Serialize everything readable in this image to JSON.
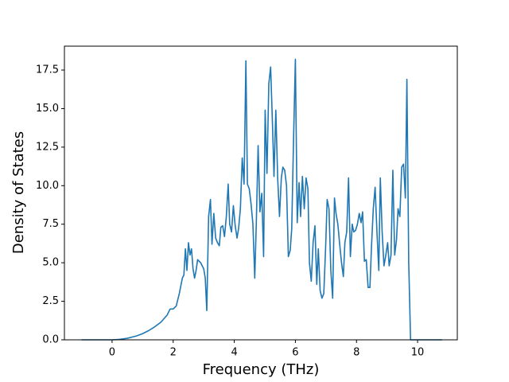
{
  "chart_data": {
    "type": "line",
    "xlabel": "Frequency (THz)",
    "ylabel": "Density of States",
    "color": "#1f77b4",
    "xlim": [
      -1.56,
      11.3
    ],
    "ylim": [
      0,
      19.05
    ],
    "xticks": [
      0,
      2,
      4,
      6,
      8,
      10
    ],
    "yticks": [
      {
        "value": 0,
        "label": "0.0"
      },
      2.5,
      {
        "value": 5,
        "label": "5.0"
      },
      7.5,
      {
        "value": 10,
        "label": "10.0"
      },
      12.5,
      {
        "value": 15,
        "label": "15.0"
      },
      17.5
    ],
    "x": [
      -1,
      0,
      0.2,
      0.5,
      0.8,
      1.0,
      1.2,
      1.4,
      1.6,
      1.8,
      1.9,
      2.0,
      2.1,
      2.2,
      2.3,
      2.35,
      2.4,
      2.45,
      2.5,
      2.55,
      2.6,
      2.65,
      2.7,
      2.75,
      2.8,
      2.9,
      3.0,
      3.05,
      3.1,
      3.16,
      3.22,
      3.27,
      3.33,
      3.39,
      3.45,
      3.51,
      3.56,
      3.62,
      3.68,
      3.74,
      3.8,
      3.85,
      3.91,
      3.97,
      4.03,
      4.09,
      4.14,
      4.2,
      4.26,
      4.32,
      4.38,
      4.43,
      4.49,
      4.55,
      4.61,
      4.67,
      4.72,
      4.78,
      4.84,
      4.9,
      4.96,
      5.01,
      5.07,
      5.13,
      5.19,
      5.25,
      5.3,
      5.36,
      5.42,
      5.48,
      5.54,
      5.59,
      5.65,
      5.71,
      5.77,
      5.83,
      5.88,
      5.94,
      6.0,
      6.06,
      6.12,
      6.17,
      6.23,
      6.29,
      6.35,
      6.41,
      6.46,
      6.52,
      6.58,
      6.64,
      6.7,
      6.75,
      6.81,
      6.87,
      6.93,
      6.99,
      7.04,
      7.1,
      7.16,
      7.22,
      7.28,
      7.33,
      7.39,
      7.45,
      7.51,
      7.57,
      7.62,
      7.68,
      7.74,
      7.8,
      7.86,
      7.91,
      7.97,
      8.03,
      8.09,
      8.15,
      8.2,
      8.26,
      8.32,
      8.38,
      8.44,
      8.49,
      8.55,
      8.61,
      8.67,
      8.73,
      8.78,
      8.84,
      8.9,
      8.96,
      9.02,
      9.07,
      9.13,
      9.19,
      9.25,
      9.31,
      9.36,
      9.42,
      9.48,
      9.54,
      9.6,
      9.65,
      9.71,
      9.77,
      10.8
    ],
    "values": [
      0,
      0,
      0.02,
      0.1,
      0.25,
      0.4,
      0.6,
      0.85,
      1.15,
      1.6,
      2.0,
      2.0,
      2.2,
      3.0,
      4.0,
      4.2,
      5.9,
      4.5,
      6.3,
      5.5,
      5.9,
      4.6,
      4.0,
      4.5,
      5.2,
      5.0,
      4.6,
      4.0,
      1.9,
      8.0,
      9.1,
      6.2,
      8.2,
      6.6,
      6.3,
      6.1,
      7.3,
      7.4,
      6.7,
      8.0,
      10.1,
      7.5,
      7.0,
      8.7,
      7.4,
      6.6,
      7.2,
      8.5,
      11.8,
      10.1,
      18.1,
      10.1,
      9.8,
      8.8,
      7.5,
      4.0,
      7.5,
      12.6,
      8.3,
      9.5,
      5.4,
      14.9,
      10.8,
      16.6,
      17.7,
      14.0,
      10.6,
      14.9,
      10.5,
      8.0,
      10.5,
      11.2,
      11.0,
      10.0,
      5.4,
      5.8,
      7.2,
      13.0,
      18.2,
      7.6,
      10.2,
      8.0,
      10.6,
      8.5,
      10.5,
      9.8,
      5.0,
      3.8,
      6.3,
      7.4,
      3.6,
      5.9,
      3.2,
      2.7,
      3.0,
      6.0,
      9.1,
      8.5,
      4.5,
      2.7,
      9.2,
      8.2,
      7.5,
      6.2,
      5.0,
      4.1,
      6.3,
      7.0,
      10.5,
      5.4,
      7.5,
      7.0,
      7.1,
      7.5,
      8.2,
      7.6,
      8.3,
      5.1,
      5.2,
      3.4,
      3.4,
      6.0,
      8.5,
      9.9,
      7.0,
      4.5,
      10.5,
      7.0,
      4.8,
      5.5,
      6.3,
      4.8,
      5.5,
      11.0,
      5.5,
      6.5,
      8.5,
      8.0,
      11.2,
      11.4,
      9.2,
      16.9,
      5.0,
      0,
      0
    ]
  }
}
